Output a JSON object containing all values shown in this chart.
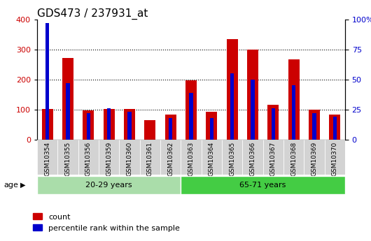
{
  "title": "GDS473 / 237931_at",
  "samples": [
    "GSM10354",
    "GSM10355",
    "GSM10356",
    "GSM10359",
    "GSM10360",
    "GSM10361",
    "GSM10362",
    "GSM10363",
    "GSM10364",
    "GSM10365",
    "GSM10366",
    "GSM10367",
    "GSM10368",
    "GSM10369",
    "GSM10370"
  ],
  "count": [
    103,
    272,
    97,
    103,
    103,
    65,
    83,
    197,
    93,
    335,
    300,
    117,
    267,
    100,
    83
  ],
  "percentile": [
    97,
    47,
    22,
    26,
    23,
    0,
    18,
    39,
    18,
    55,
    50,
    26,
    45,
    22,
    19
  ],
  "groups": [
    {
      "label": "20-29 years",
      "start": 0,
      "end": 7,
      "color": "#aaddaa"
    },
    {
      "label": "65-71 years",
      "start": 7,
      "end": 15,
      "color": "#44cc44"
    }
  ],
  "bar_color_count": "#cc0000",
  "bar_color_pct": "#0000cc",
  "red_bar_width": 0.55,
  "blue_bar_width": 0.18,
  "ylim_left": [
    0,
    400
  ],
  "ylim_right": [
    0,
    100
  ],
  "yticks_left": [
    0,
    100,
    200,
    300,
    400
  ],
  "yticks_right": [
    0,
    25,
    50,
    75,
    100
  ],
  "yticklabels_right": [
    "0",
    "25",
    "50",
    "75",
    "100%"
  ],
  "grid_dotted_at": [
    100,
    200,
    300
  ],
  "bg_color_plot": "#ffffff",
  "bg_color_xticklabels": "#d3d3d3",
  "title_fontsize": 11,
  "tick_fontsize": 8,
  "age_label": "age",
  "legend_count": "count",
  "legend_pct": "percentile rank within the sample"
}
